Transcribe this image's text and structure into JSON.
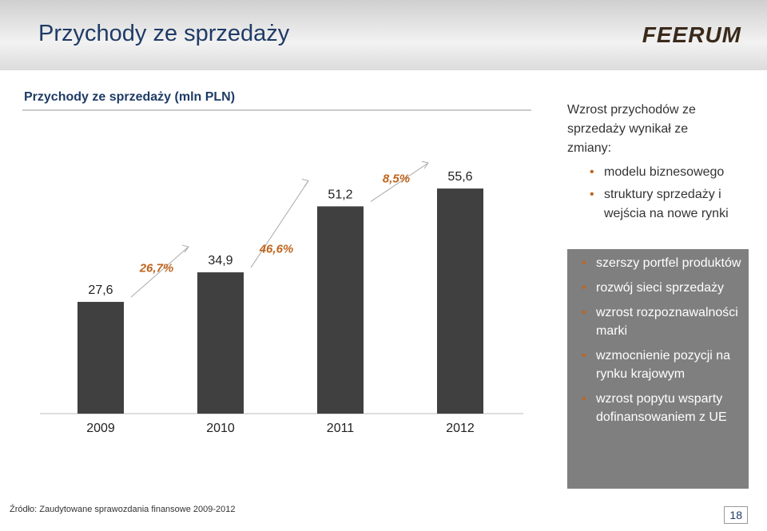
{
  "header": {
    "title": "Przychody ze sprzedaży",
    "logo": "FEERUM"
  },
  "chart_data": {
    "type": "bar",
    "title": "Przychody ze sprzedaży (mln PLN)",
    "categories": [
      "2009",
      "2010",
      "2011",
      "2012"
    ],
    "values": [
      27.6,
      34.9,
      51.2,
      55.6
    ],
    "value_labels": [
      "27,6",
      "34,9",
      "51,2",
      "55,6"
    ],
    "color": "#404040",
    "annotations": [
      "26,7%",
      "46,6%",
      "8,5%"
    ],
    "annotation_color": "#c0651e"
  },
  "side": {
    "intro": "Wzrost przychodów ze sprzedaży wynikał ze zmiany:",
    "bullets": [
      "modelu biznesowego",
      "struktury sprzedaży i wejścia na nowe rynki"
    ],
    "box_bullets": [
      "szerszy portfel produktów",
      "rozwój sieci sprzedaży",
      "wzrost rozpoznawalności marki",
      "wzmocnienie pozycji na rynku krajowym",
      "wzrost popytu wsparty dofinansowaniem z UE"
    ]
  },
  "footer": {
    "source": "Źródło: Zaudytowane sprawozdania finansowe 2009-2012",
    "page": "18"
  }
}
